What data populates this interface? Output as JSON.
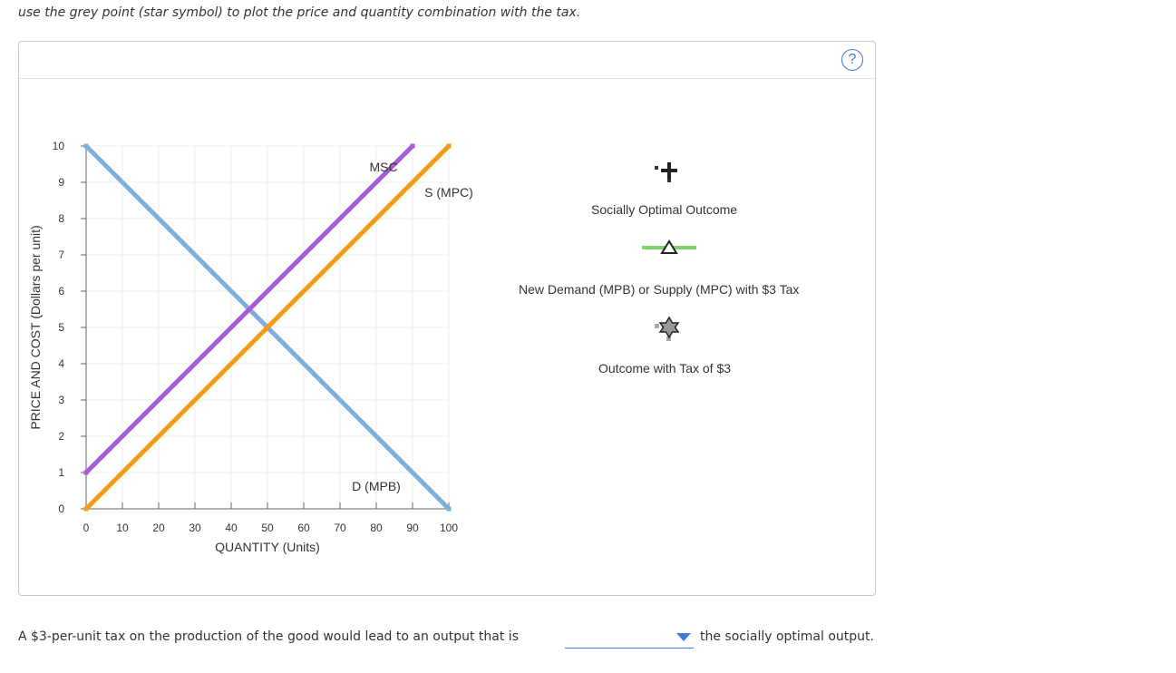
{
  "instruction": "use the grey point (star symbol) to plot the price and quantity combination with the tax.",
  "help_label": "?",
  "legend": {
    "socially_optimal": "Socially Optimal Outcome",
    "new_curve": "New Demand (MPB) or Supply (MPC) with $3 Tax",
    "tax_outcome": "Outcome with Tax of $3"
  },
  "question": {
    "prefix": "A $3-per-unit tax on the production of the good would lead to an output that is",
    "selected": "",
    "suffix": "the socially optimal output."
  },
  "colors": {
    "demand": "#7eaedb",
    "supply": "#f39c12",
    "msc": "#a55dd6",
    "new_curve_legend": "#7fd36a",
    "accent": "#3d7bd6"
  },
  "chart_data": {
    "type": "line",
    "xlabel": "QUANTITY (Units)",
    "ylabel": "PRICE AND COST (Dollars per unit)",
    "xlim": [
      0,
      100
    ],
    "ylim": [
      0,
      10
    ],
    "xticks": [
      0,
      10,
      20,
      30,
      40,
      50,
      60,
      70,
      80,
      90,
      100
    ],
    "yticks": [
      0,
      1,
      2,
      3,
      4,
      5,
      6,
      7,
      8,
      9,
      10
    ],
    "grid": true,
    "series": [
      {
        "name": "D (MPB)",
        "x": [
          0,
          100
        ],
        "y": [
          10,
          0
        ],
        "color": "#7eaedb"
      },
      {
        "name": "S (MPC)",
        "x": [
          0,
          100
        ],
        "y": [
          0,
          10
        ],
        "color": "#f39c12"
      },
      {
        "name": "MSC",
        "x": [
          0,
          90
        ],
        "y": [
          1,
          10
        ],
        "color": "#a55dd6"
      }
    ],
    "annotations": [
      {
        "text": "MSC",
        "x": 82,
        "y": 9.3
      },
      {
        "text": "S (MPC)",
        "x": 100,
        "y": 8.6
      },
      {
        "text": "D (MPB)",
        "x": 80,
        "y": 0.5
      }
    ]
  }
}
